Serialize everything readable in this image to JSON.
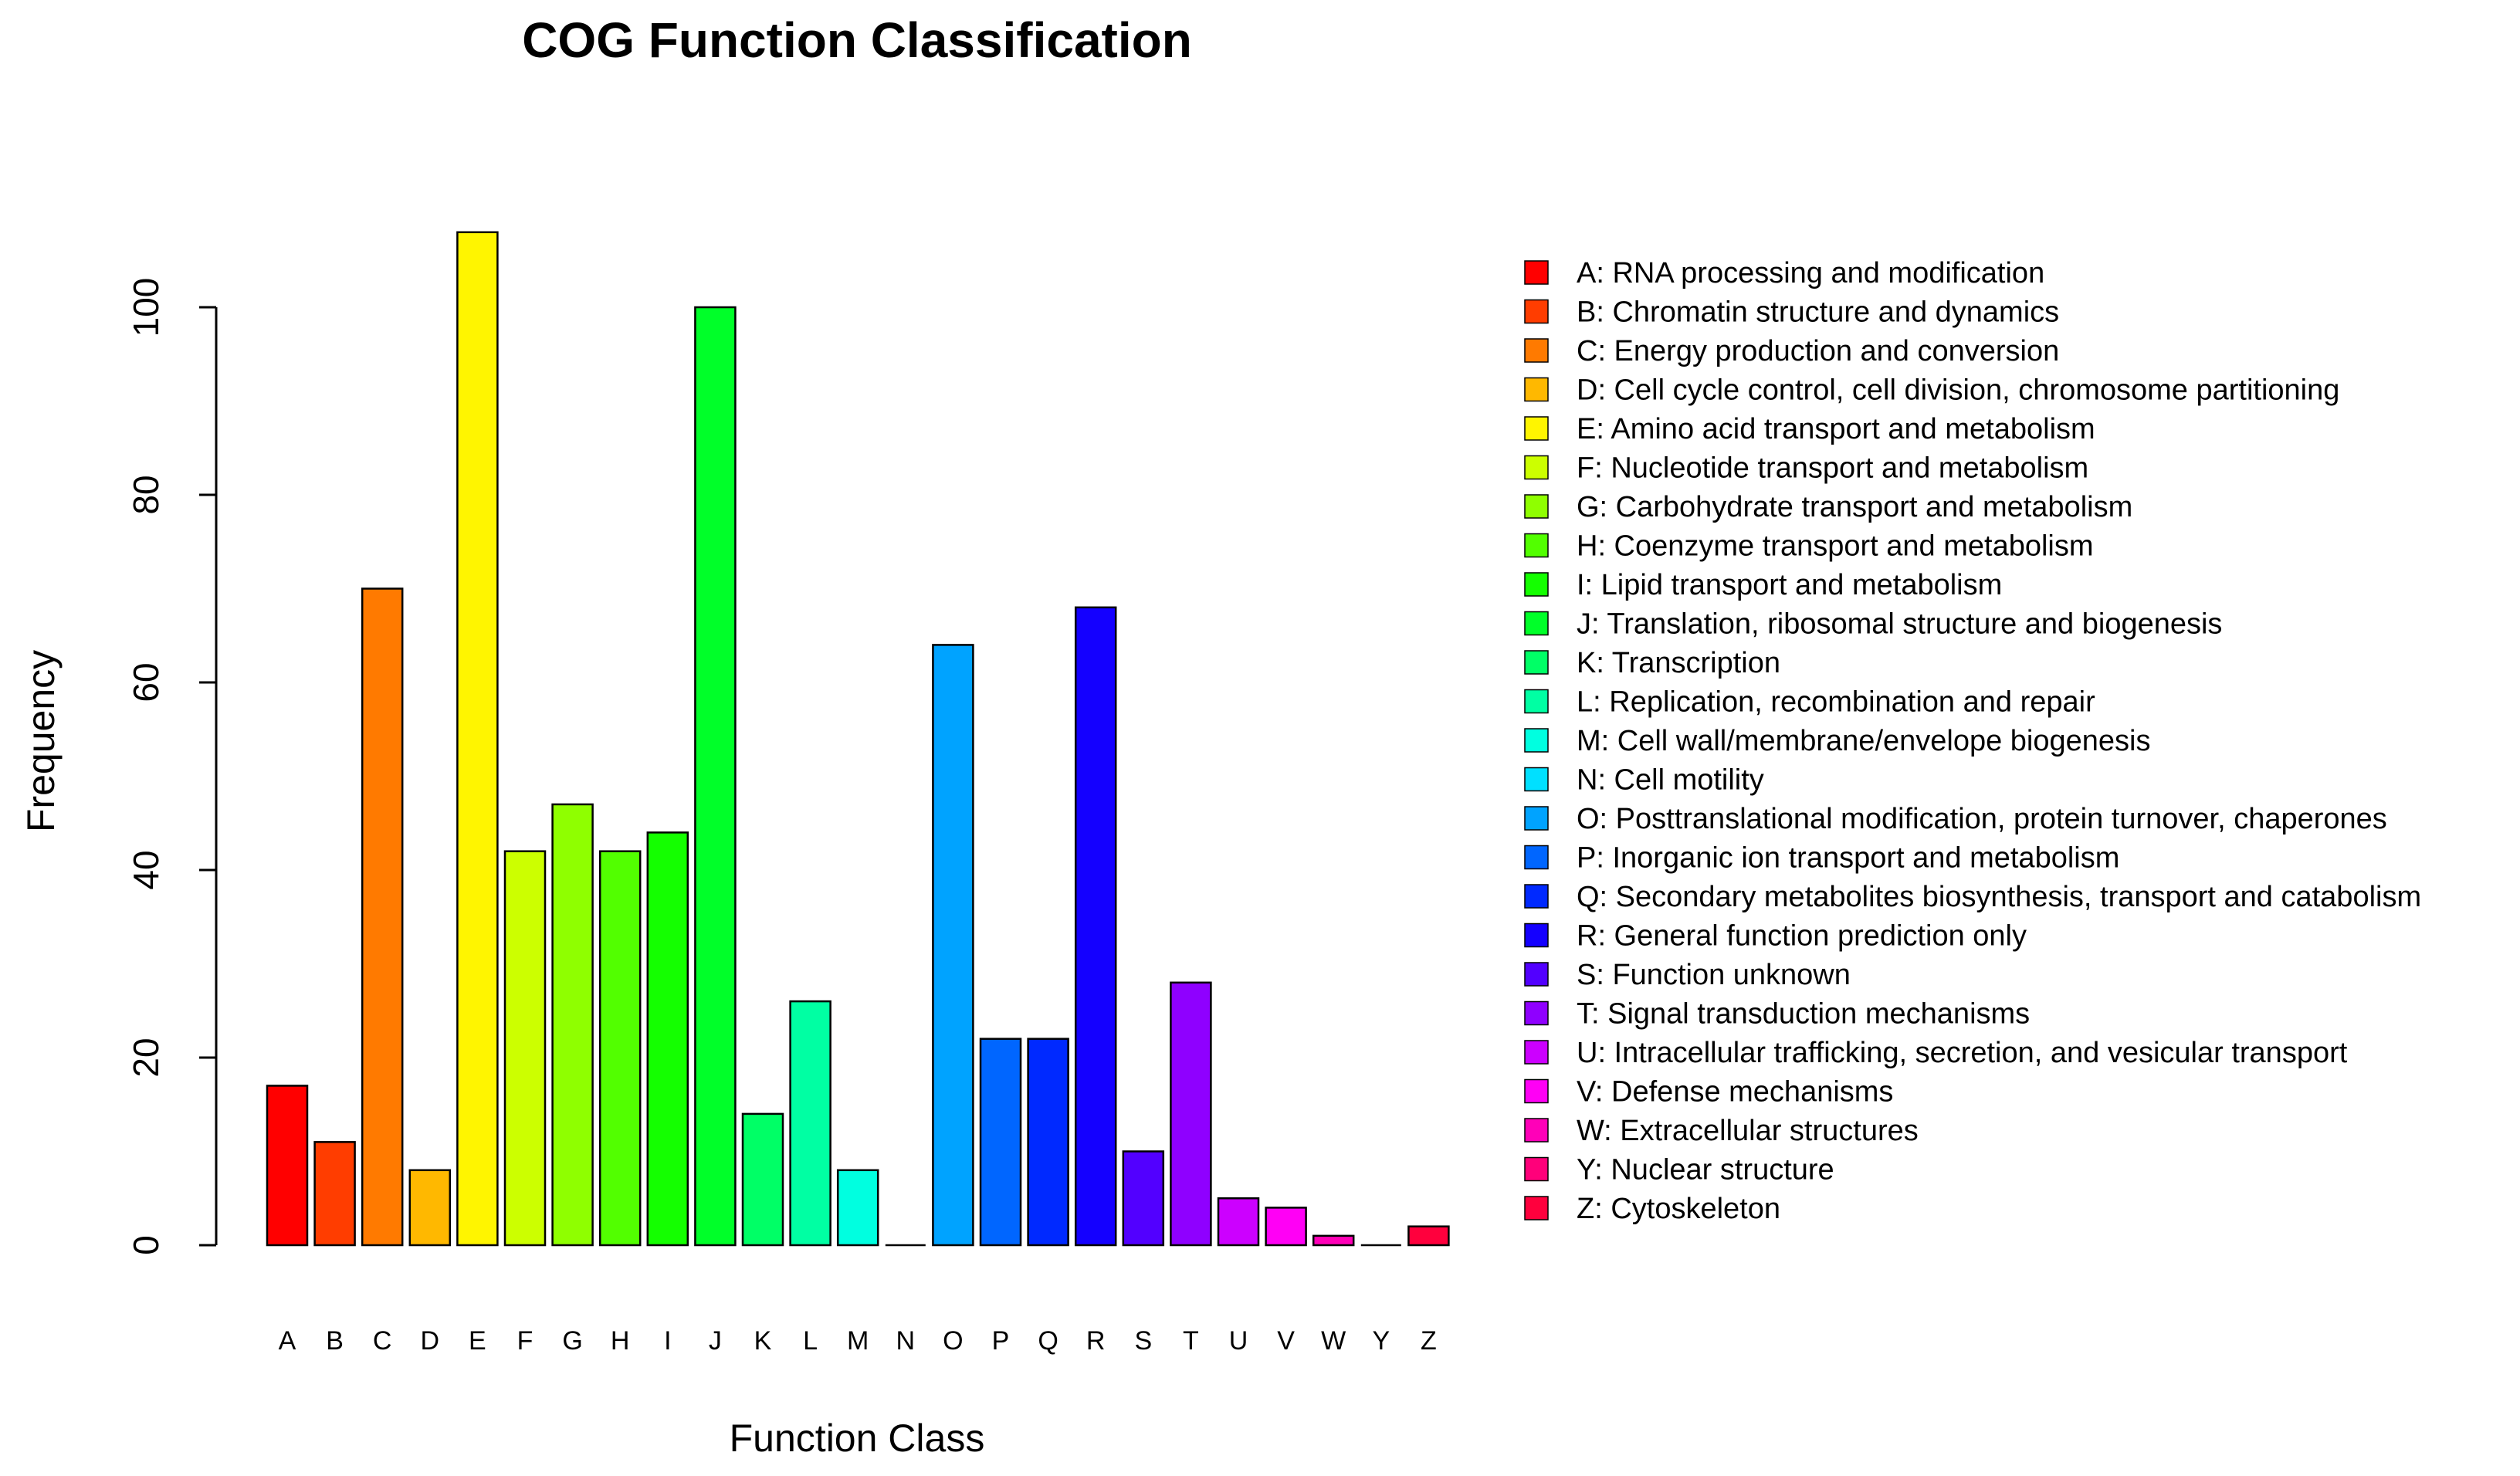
{
  "chart_data": {
    "type": "bar",
    "title": "COG Function Classification",
    "xlabel": "Function Class",
    "ylabel": "Frequency",
    "ylim": [
      0,
      108
    ],
    "yticks": [
      0,
      20,
      40,
      60,
      80,
      100
    ],
    "grid": false,
    "legend_position": "right",
    "categories": [
      "A",
      "B",
      "C",
      "D",
      "E",
      "F",
      "G",
      "H",
      "I",
      "J",
      "K",
      "L",
      "M",
      "N",
      "O",
      "P",
      "Q",
      "R",
      "S",
      "T",
      "U",
      "V",
      "W",
      "Y",
      "Z"
    ],
    "values": [
      17,
      11,
      70,
      8,
      108,
      42,
      47,
      42,
      44,
      100,
      14,
      26,
      8,
      0,
      64,
      22,
      22,
      68,
      10,
      28,
      5,
      4,
      1,
      0,
      2
    ],
    "colors": [
      "#FF0000",
      "#FF3D00",
      "#FF7A00",
      "#FFB800",
      "#FFF500",
      "#CCFF00",
      "#8FFF00",
      "#52FF00",
      "#14FF00",
      "#00FF29",
      "#00FF66",
      "#00FFA3",
      "#00FFE0",
      "#00E0FF",
      "#00A3FF",
      "#0066FF",
      "#0029FF",
      "#1400FF",
      "#5200FF",
      "#8F00FF",
      "#CC00FF",
      "#FF00F5",
      "#FF00B8",
      "#FF007A",
      "#FF003D"
    ],
    "legend": [
      "A: RNA processing and modification",
      "B: Chromatin structure and dynamics",
      "C: Energy production and conversion",
      "D: Cell cycle control, cell division, chromosome partitioning",
      "E: Amino acid transport and metabolism",
      "F: Nucleotide transport and metabolism",
      "G: Carbohydrate transport and metabolism",
      "H: Coenzyme transport and metabolism",
      "I: Lipid transport and metabolism",
      "J: Translation, ribosomal structure and biogenesis",
      "K: Transcription",
      "L: Replication, recombination and repair",
      "M: Cell wall/membrane/envelope biogenesis",
      "N: Cell motility",
      "O: Posttranslational modification, protein turnover, chaperones",
      "P: Inorganic ion transport and metabolism",
      "Q: Secondary metabolites biosynthesis, transport and catabolism",
      "R: General function prediction only",
      "S: Function unknown",
      "T: Signal transduction mechanisms",
      "U: Intracellular trafficking, secretion, and vesicular transport",
      "V: Defense mechanisms",
      "W: Extracellular structures",
      "Y: Nuclear structure",
      "Z: Cytoskeleton"
    ]
  }
}
